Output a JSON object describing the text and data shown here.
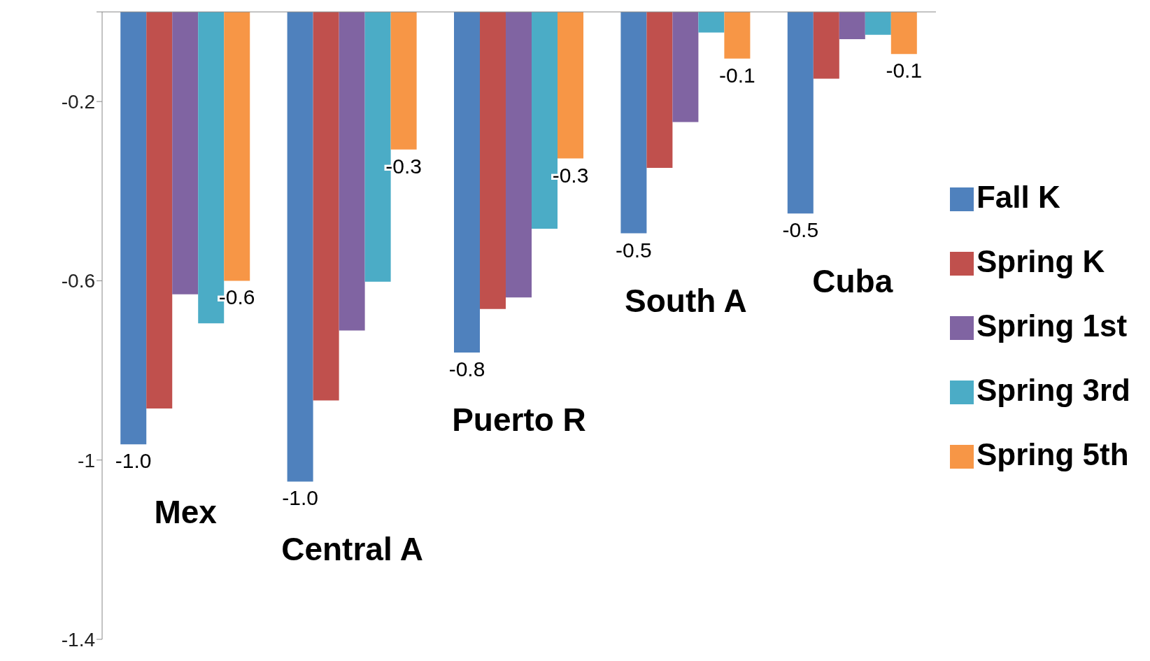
{
  "chart_data": {
    "type": "bar",
    "categories": [
      "Mex",
      "Central A",
      "Puerto R",
      "South A",
      "Cuba"
    ],
    "series": [
      {
        "name": "Fall K",
        "color": "#4f81bd",
        "values": [
          -0.965,
          -1.048,
          -0.76,
          -0.494,
          -0.45
        ],
        "value_labels": [
          "-1.0",
          "-1.0",
          "-0.8",
          "-0.5",
          "-0.5"
        ]
      },
      {
        "name": "Spring K",
        "color": "#c0504d",
        "values": [
          -0.885,
          -0.867,
          -0.663,
          -0.348,
          -0.149
        ]
      },
      {
        "name": "Spring 1st",
        "color": "#8064a2",
        "values": [
          -0.63,
          -0.711,
          -0.637,
          -0.246,
          -0.061
        ]
      },
      {
        "name": "Spring 3rd",
        "color": "#4bacc6",
        "values": [
          -0.695,
          -0.602,
          -0.484,
          -0.046,
          -0.051
        ]
      },
      {
        "name": "Spring 5th",
        "color": "#f79646",
        "values": [
          -0.6,
          -0.307,
          -0.327,
          -0.104,
          -0.094
        ],
        "value_labels": [
          "-0.6",
          "-0.3",
          "-0.3",
          "-0.1",
          "-0.1"
        ]
      }
    ],
    "ylim": [
      -1.4,
      0
    ],
    "yticks": [
      {
        "value": 0,
        "label": null
      },
      -0.2,
      -0.6,
      -1,
      -1.4
    ],
    "grid": false,
    "legend": "right"
  }
}
